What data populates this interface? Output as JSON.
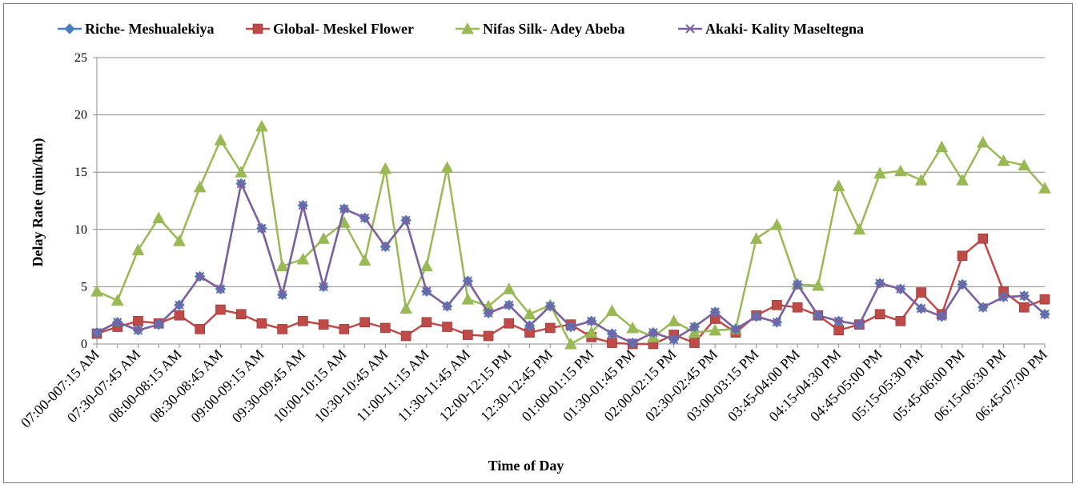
{
  "chart_data": {
    "type": "line",
    "title": "",
    "xlabel": "Time of Day",
    "ylabel": "Delay Rate (min/km)",
    "ylim": [
      0,
      25
    ],
    "yticks": [
      0,
      5,
      10,
      15,
      20,
      25
    ],
    "grid": "horizontal",
    "legend_position": "top",
    "x_tick_labels": [
      "07:00-007:15 AM",
      "07:30-07:45  AM",
      "08:00-08:15  AM",
      "08:30-08:45  AM",
      "09:00-09:15  AM",
      "09:30-09:45  AM",
      "10:00-10:15  AM",
      "10:30-10:45  AM",
      "11:00-11:15 AM",
      "11:30-11:45  AM",
      "12:00-12:15  PM",
      "12:30-12:45  PM",
      "01:00-01:15  PM",
      "01:30-01:45 PM",
      "02:00-02:15 PM",
      "02:30-02:45 PM",
      "03:00-03:15 PM",
      "03:45-04:00 PM",
      "04:15-04:30 PM",
      "04:45-05:00 PM",
      "05:15-05:30 PM",
      "05:45-06:00 PM",
      "06:15-06:30 PM",
      "06:45-07:00 PM"
    ],
    "series": [
      {
        "name": "Riche- Meshualekiya",
        "color": "#4a7ebb",
        "marker": "diamond",
        "values": [
          1.0,
          1.9,
          1.2,
          1.7,
          3.4,
          5.9,
          4.8,
          14.0,
          10.1,
          4.3,
          12.1,
          5.0,
          11.8,
          11.0,
          8.5,
          10.8,
          4.6,
          3.3,
          5.5,
          2.7,
          3.4,
          1.6,
          3.3,
          1.5,
          2.0,
          0.9,
          0.1,
          1.0,
          0.4,
          1.5,
          2.8,
          1.3,
          2.4,
          1.9,
          5.2,
          2.5,
          2.0,
          1.7,
          5.3,
          4.8,
          3.1,
          2.4,
          5.2,
          3.2,
          4.1,
          4.2,
          2.6
        ]
      },
      {
        "name": "Global- Meskel Flower",
        "color": "#be4b48",
        "marker": "square",
        "values": [
          0.9,
          1.5,
          2.0,
          1.8,
          2.5,
          1.3,
          3.0,
          2.6,
          1.8,
          1.3,
          2.0,
          1.7,
          1.3,
          1.9,
          1.4,
          0.7,
          1.9,
          1.5,
          0.8,
          0.7,
          1.8,
          1.0,
          1.4,
          1.7,
          0.6,
          0.1,
          0.0,
          0.0,
          0.8,
          0.1,
          2.2,
          1.0,
          2.5,
          3.4,
          3.2,
          2.5,
          1.2,
          1.7,
          2.6,
          2.0,
          4.5,
          2.6,
          7.7,
          9.2,
          4.6,
          3.2,
          3.9
        ]
      },
      {
        "name": "Nifas Silk- Adey Abeba",
        "color": "#98b954",
        "marker": "triangle",
        "values": [
          4.6,
          3.8,
          8.2,
          11.0,
          9.0,
          13.7,
          17.8,
          15.0,
          19.0,
          6.8,
          7.4,
          9.2,
          10.6,
          7.3,
          15.3,
          3.1,
          6.8,
          15.4,
          3.9,
          3.3,
          4.8,
          2.6,
          3.4,
          0.0,
          1.0,
          2.9,
          1.4,
          0.6,
          2.0,
          1.0,
          1.2,
          1.3,
          9.2,
          10.4,
          5.2,
          5.1,
          13.8,
          10.0,
          14.9,
          15.1,
          14.3,
          17.2,
          14.3,
          17.6,
          16.0,
          15.6,
          13.6
        ]
      },
      {
        "name": "Akaki- Kality Maseltegna",
        "color": "#7d60a0",
        "marker": "x",
        "values": [
          1.0,
          1.9,
          1.2,
          1.7,
          3.4,
          5.9,
          4.8,
          14.0,
          10.1,
          4.3,
          12.1,
          5.0,
          11.8,
          11.0,
          8.5,
          10.8,
          4.6,
          3.3,
          5.5,
          2.7,
          3.4,
          1.6,
          3.3,
          1.5,
          2.0,
          0.9,
          0.1,
          1.0,
          0.4,
          1.5,
          2.8,
          1.3,
          2.4,
          1.9,
          5.2,
          2.5,
          2.0,
          1.7,
          5.3,
          4.8,
          3.1,
          2.4,
          5.2,
          3.2,
          4.1,
          4.2,
          2.6
        ]
      }
    ]
  }
}
